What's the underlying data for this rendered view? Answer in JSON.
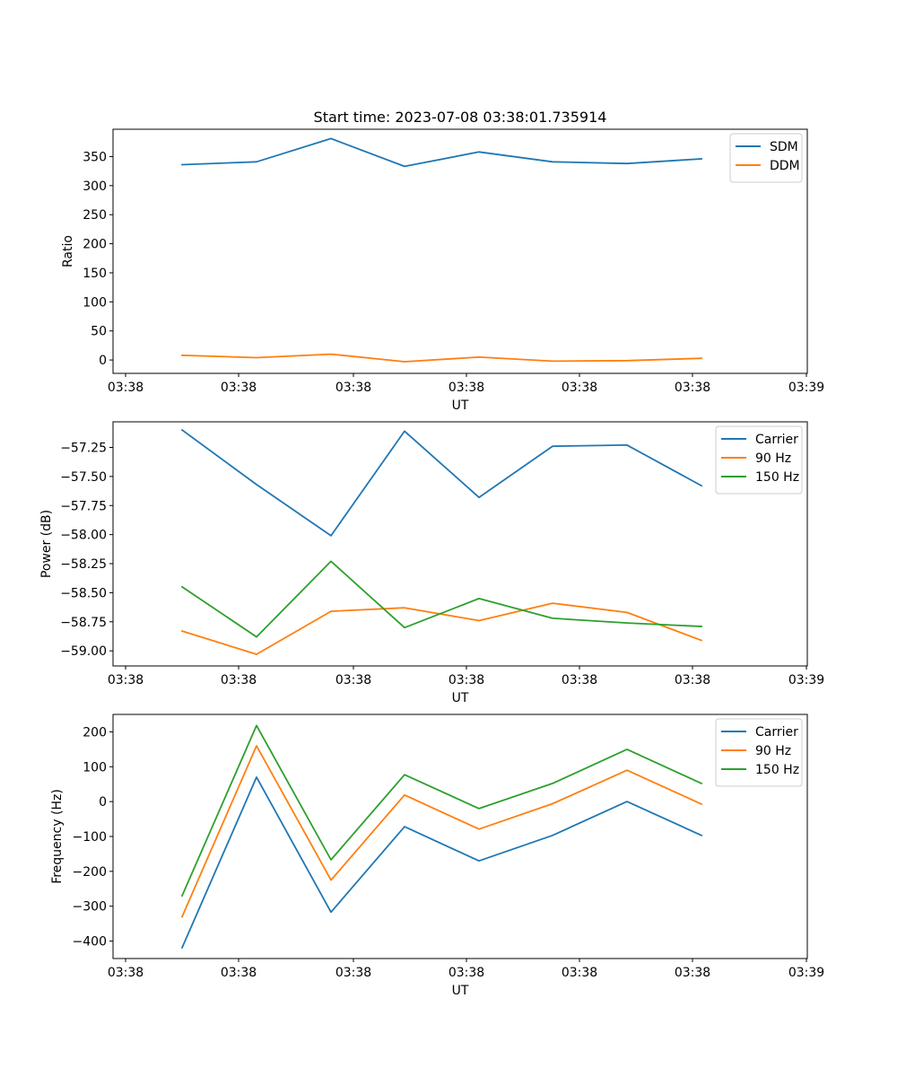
{
  "title": "Start time: 2023-07-08 03:38:01.735914",
  "chart_data": [
    {
      "type": "line",
      "title": "Start time: 2023-07-08 03:38:01.735914",
      "xlabel": "UT",
      "ylabel": "Ratio",
      "x_tick_labels": [
        "03:38",
        "03:38",
        "03:38",
        "03:38",
        "03:38",
        "03:38",
        "03:39"
      ],
      "y_ticks": [
        0,
        50,
        100,
        150,
        200,
        250,
        300,
        350
      ],
      "y_tick_labels": [
        "0",
        "50",
        "100",
        "150",
        "200",
        "250",
        "300",
        "350"
      ],
      "ylim": [
        -23,
        397
      ],
      "legend": "top-right",
      "series": [
        {
          "name": "SDM",
          "color": "#1f77b4",
          "values": [
            336,
            341,
            381,
            333,
            358,
            341,
            338,
            346
          ]
        },
        {
          "name": "DDM",
          "color": "#ff7f0e",
          "values": [
            8,
            4,
            10,
            -3,
            5,
            -2,
            -1,
            3
          ]
        }
      ]
    },
    {
      "type": "line",
      "xlabel": "UT",
      "ylabel": "Power (dB)",
      "x_tick_labels": [
        "03:38",
        "03:38",
        "03:38",
        "03:38",
        "03:38",
        "03:38",
        "03:39"
      ],
      "y_ticks": [
        -59.0,
        -58.75,
        -58.5,
        -58.25,
        -58.0,
        -57.75,
        -57.5,
        -57.25
      ],
      "y_tick_labels": [
        "−59.00",
        "−58.75",
        "−58.50",
        "−58.25",
        "−58.00",
        "−57.75",
        "−57.50",
        "−57.25"
      ],
      "ylim": [
        -59.13,
        -57.03
      ],
      "legend": "top-right",
      "series": [
        {
          "name": "Carrier",
          "color": "#1f77b4",
          "values": [
            -57.1,
            -57.57,
            -58.01,
            -57.11,
            -57.68,
            -57.24,
            -57.23,
            -57.58
          ]
        },
        {
          "name": "90 Hz",
          "color": "#ff7f0e",
          "values": [
            -58.83,
            -59.03,
            -58.66,
            -58.63,
            -58.74,
            -58.59,
            -58.67,
            -58.91
          ]
        },
        {
          "name": "150 Hz",
          "color": "#2ca02c",
          "values": [
            -58.45,
            -58.88,
            -58.23,
            -58.8,
            -58.55,
            -58.72,
            -58.76,
            -58.79
          ]
        }
      ]
    },
    {
      "type": "line",
      "xlabel": "UT",
      "ylabel": "Frequency (Hz)",
      "x_tick_labels": [
        "03:38",
        "03:38",
        "03:38",
        "03:38",
        "03:38",
        "03:38",
        "03:39"
      ],
      "y_ticks": [
        -400,
        -300,
        -200,
        -100,
        0,
        100,
        200
      ],
      "y_tick_labels": [
        "−400",
        "−300",
        "−200",
        "−100",
        "0",
        "100",
        "200"
      ],
      "ylim": [
        -450,
        250
      ],
      "legend": "top-right",
      "series": [
        {
          "name": "Carrier",
          "color": "#1f77b4",
          "values": [
            -419,
            70,
            -317,
            -72,
            -170,
            -97,
            0,
            -97
          ]
        },
        {
          "name": "90 Hz",
          "color": "#ff7f0e",
          "values": [
            -330,
            160,
            -225,
            19,
            -79,
            -6,
            90,
            -7
          ]
        },
        {
          "name": "150 Hz",
          "color": "#2ca02c",
          "values": [
            -270,
            218,
            -167,
            77,
            -20,
            52,
            150,
            52
          ]
        }
      ]
    }
  ]
}
